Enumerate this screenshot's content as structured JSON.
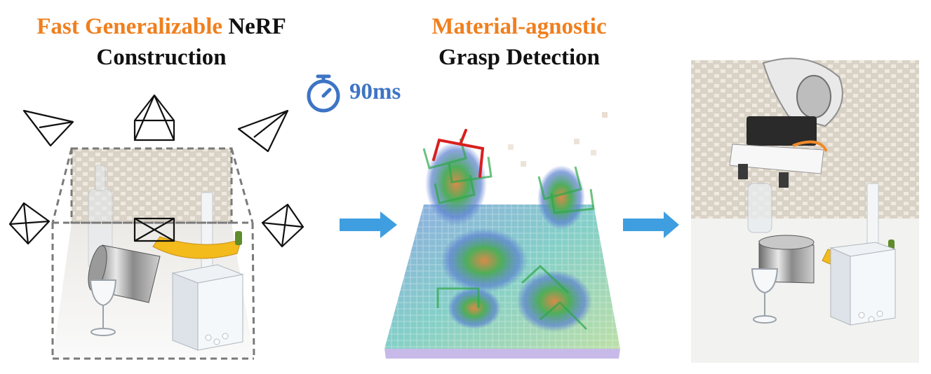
{
  "headings": {
    "left": {
      "highlight": "Fast Generalizable",
      "rest": "NeRF",
      "line2": "Construction"
    },
    "middle": {
      "highlight": "Material-agnostic",
      "line2": "Grasp Detection"
    }
  },
  "timer": {
    "icon": "stopwatch-icon",
    "label": "90ms"
  },
  "colors": {
    "highlight": "#f07f1e",
    "timer": "#3e74c4",
    "arrow": "#3f9ee0",
    "grasp_top": "#d91f1f",
    "grasp_candidates": "#2ea84a"
  }
}
